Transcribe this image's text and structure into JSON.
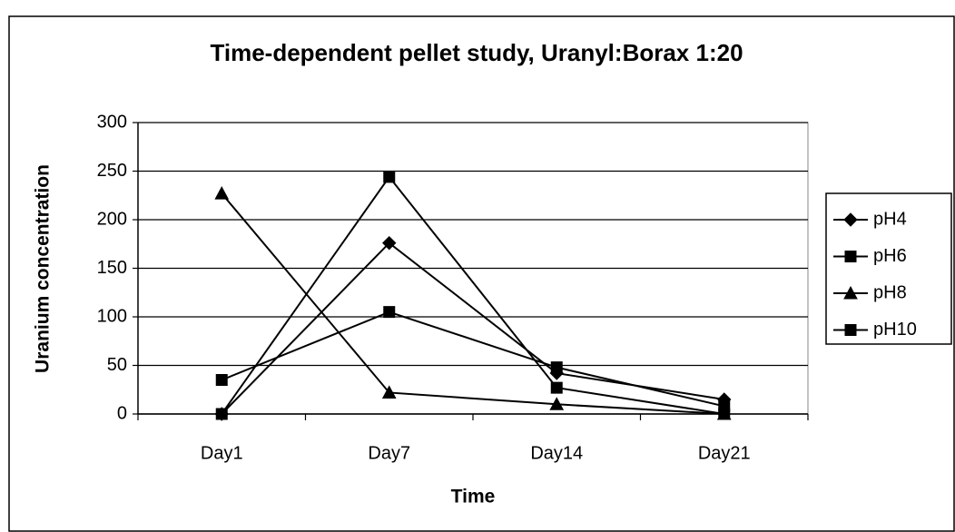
{
  "chart_data": {
    "type": "line",
    "title": "Time-dependent pellet study, Uranyl:Borax 1:20",
    "x_label": "Time",
    "y_label": "Uranium concentration",
    "categories": [
      "Day1",
      "Day7",
      "Day14",
      "Day21"
    ],
    "series": [
      {
        "name": "pH4",
        "color": "#000000",
        "marker": "diamond",
        "values": [
          0,
          176,
          42,
          15
        ]
      },
      {
        "name": "pH6",
        "color": "#000000",
        "marker": "square",
        "values": [
          0,
          244,
          27,
          0
        ]
      },
      {
        "name": "pH8",
        "color": "#000000",
        "marker": "triangle",
        "values": [
          227,
          22,
          10,
          0
        ]
      },
      {
        "name": "pH10",
        "color": "#000000",
        "marker": "square",
        "values": [
          35,
          105,
          48,
          8
        ]
      }
    ],
    "ylim": [
      0,
      300
    ],
    "yticks": [
      0,
      50,
      100,
      150,
      200,
      250,
      300
    ],
    "grid": true,
    "legend": "right"
  }
}
